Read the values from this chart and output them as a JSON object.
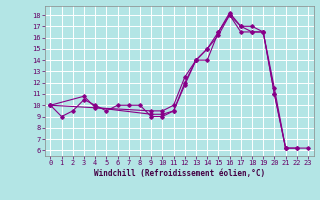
{
  "xlabel": "Windchill (Refroidissement éolien,°C)",
  "background_color": "#b3e5e5",
  "line_color": "#880088",
  "grid_color": "#d0f0f0",
  "xlim": [
    -0.5,
    23.5
  ],
  "ylim": [
    5.5,
    18.8
  ],
  "yticks": [
    6,
    7,
    8,
    9,
    10,
    11,
    12,
    13,
    14,
    15,
    16,
    17,
    18
  ],
  "xticks": [
    0,
    1,
    2,
    3,
    4,
    5,
    6,
    7,
    8,
    9,
    10,
    11,
    12,
    13,
    14,
    15,
    16,
    17,
    18,
    19,
    20,
    21,
    22,
    23
  ],
  "series1_x": [
    0,
    1,
    2,
    3,
    4,
    5,
    6,
    7,
    8,
    9,
    10,
    11,
    12,
    13,
    14,
    15,
    16,
    17,
    18,
    19,
    20,
    21,
    22,
    23
  ],
  "series1_y": [
    10,
    9,
    9.5,
    10.5,
    10,
    9.5,
    10,
    10,
    10,
    9,
    9,
    9.5,
    12,
    14,
    14,
    16.5,
    18.2,
    17,
    16.5,
    16.5,
    11,
    6.2,
    6.2,
    6.2
  ],
  "series2_x": [
    0,
    3,
    4,
    9,
    10,
    11,
    12,
    13,
    14,
    15,
    16,
    17,
    18,
    19,
    20,
    21,
    22
  ],
  "series2_y": [
    10,
    10.8,
    9.8,
    9.2,
    9.2,
    9.5,
    11.8,
    14,
    15,
    16.2,
    18,
    16.5,
    16.5,
    16.5,
    11,
    6.2,
    6.2
  ],
  "series3_x": [
    0,
    9,
    10,
    11,
    12,
    13,
    14,
    15,
    16,
    17,
    18,
    19,
    20,
    21
  ],
  "series3_y": [
    10,
    9.5,
    9.5,
    10,
    12.5,
    14,
    15,
    16.5,
    18,
    17,
    17,
    16.5,
    11.5,
    6.2
  ],
  "xlabel_fontsize": 5.5,
  "tick_fontsize": 5.0
}
